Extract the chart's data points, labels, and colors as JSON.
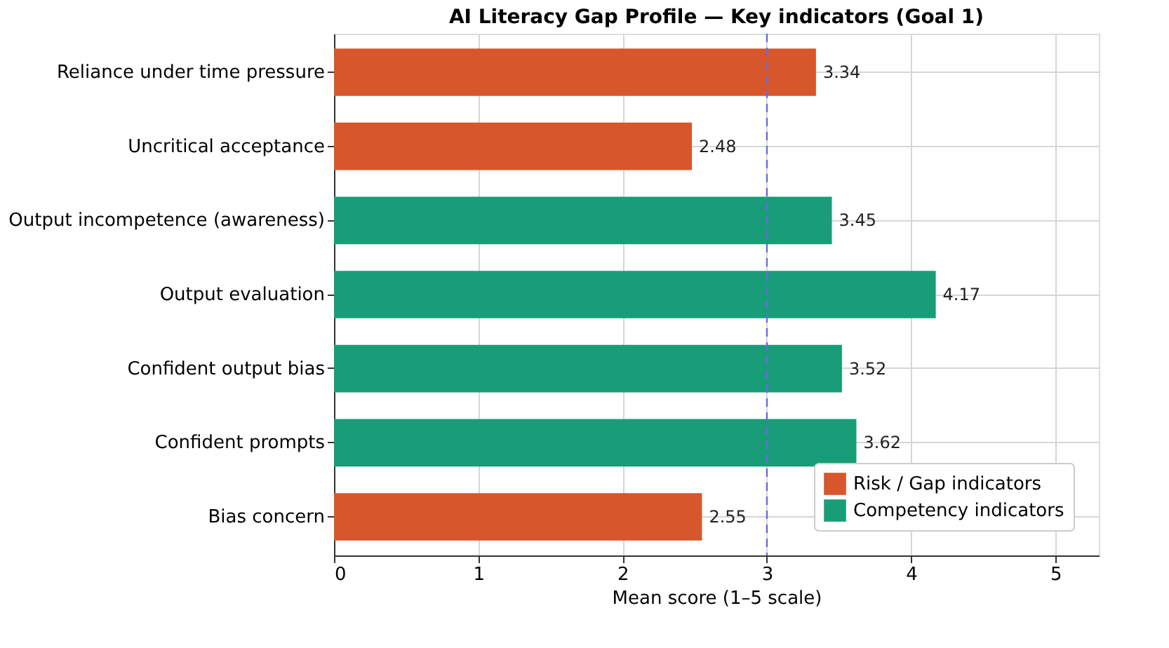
{
  "chart_data": {
    "type": "bar",
    "orientation": "horizontal",
    "title": "AI Literacy Gap Profile — Key indicators (Goal 1)",
    "xlabel": "Mean score (1–5 scale)",
    "categories": [
      "Reliance under time pressure",
      "Uncritical acceptance",
      "Output incompetence (awareness)",
      "Output evaluation",
      "Confident output bias",
      "Confident prompts",
      "Bias concern"
    ],
    "series": [
      {
        "name": "Risk / Gap indicators",
        "color": "#d6572b",
        "values": [
          3.34,
          2.48,
          null,
          null,
          null,
          null,
          2.55
        ]
      },
      {
        "name": "Competency indicators",
        "color": "#189d78",
        "values": [
          null,
          null,
          3.45,
          4.17,
          3.52,
          3.62,
          null
        ]
      }
    ],
    "xlim": [
      0,
      5.3
    ],
    "xticks": [
      0,
      1,
      2,
      3,
      4,
      5
    ],
    "ref_lines": [
      {
        "axis": "x",
        "value": 3,
        "color": "#6a6ae0",
        "line_style": "dashed"
      }
    ],
    "data_labels": true,
    "grid": true,
    "legend": "bottom right"
  }
}
